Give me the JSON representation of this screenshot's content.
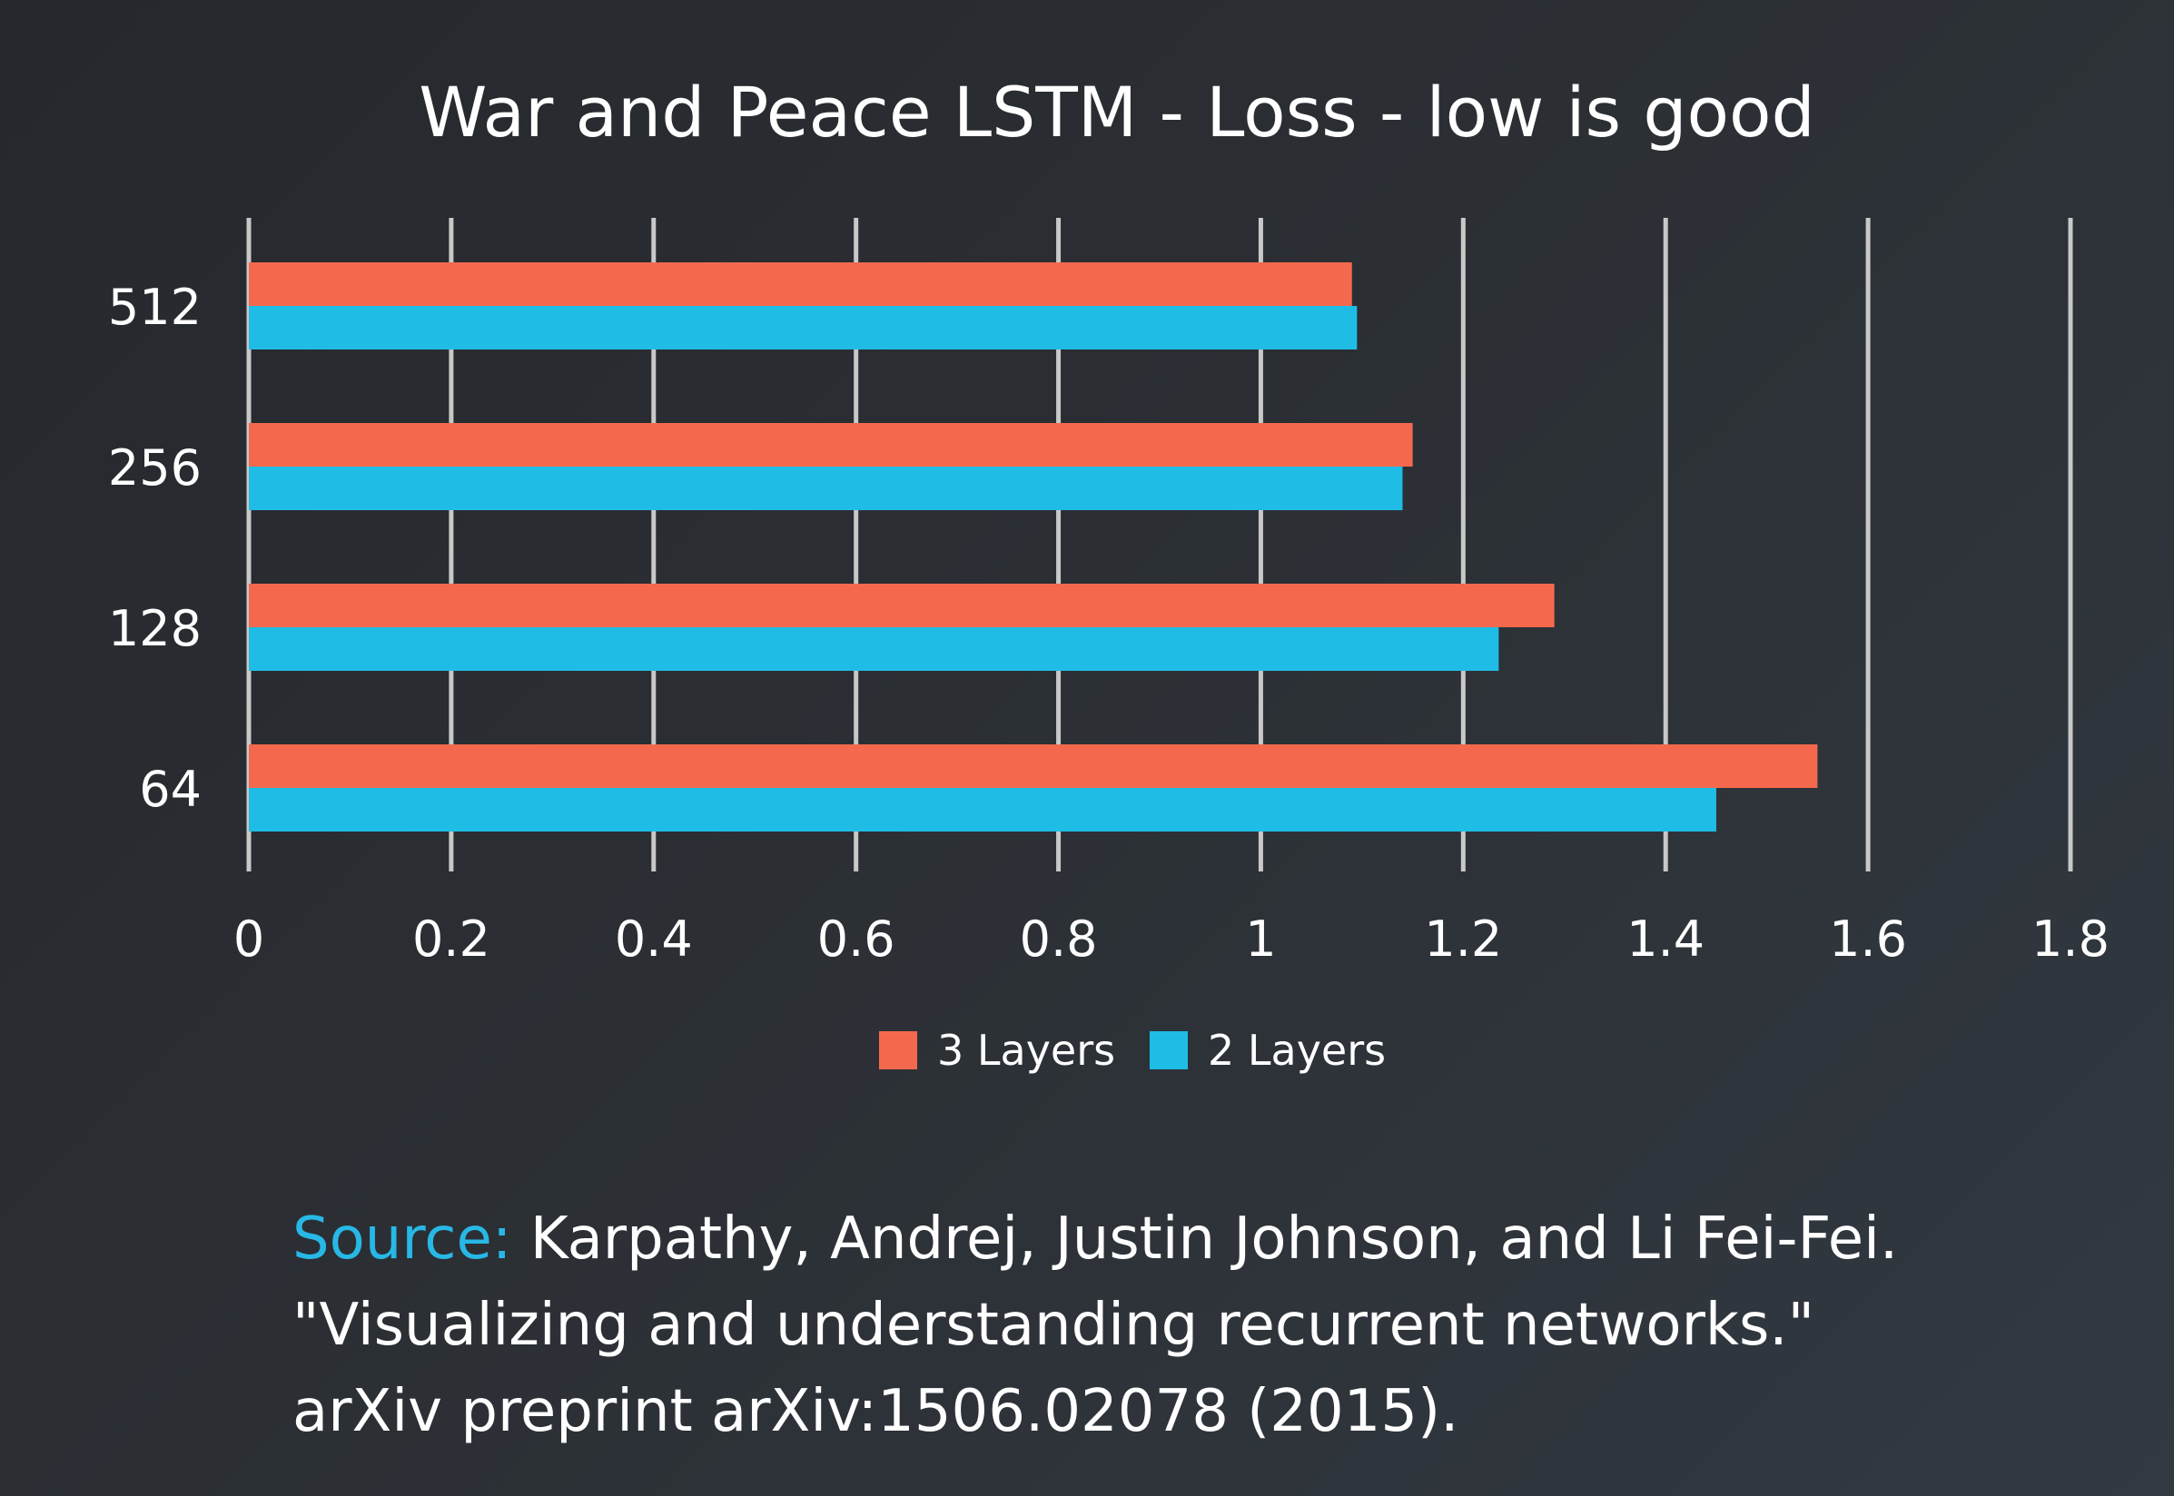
{
  "citation": {
    "label": "Source:",
    "line1": "Karpathy, Andrej, Justin Johnson, and Li Fei-Fei.",
    "line2": "\"Visualizing and understanding recurrent networks.\"",
    "line3": "arXiv preprint arXiv:1506.02078 (2015)."
  },
  "chart_data": {
    "type": "bar",
    "orientation": "horizontal",
    "title": "War and Peace LSTM - Loss - low is good",
    "xlabel": "",
    "ylabel": "",
    "categories": [
      "512",
      "256",
      "128",
      "64"
    ],
    "series": [
      {
        "name": "3 Layers",
        "color": "#f4694d",
        "values": [
          1.09,
          1.15,
          1.29,
          1.55
        ]
      },
      {
        "name": "2 Layers",
        "color": "#1fbde6",
        "values": [
          1.095,
          1.14,
          1.235,
          1.45
        ]
      }
    ],
    "xlim": [
      0,
      1.8
    ],
    "x_ticks": [
      "0",
      "0.2",
      "0.4",
      "0.6",
      "0.8",
      "1",
      "1.2",
      "1.4",
      "1.6",
      "1.8"
    ],
    "grid": true,
    "gridline_color": "#c8c8c8",
    "legend_position": "bottom"
  }
}
